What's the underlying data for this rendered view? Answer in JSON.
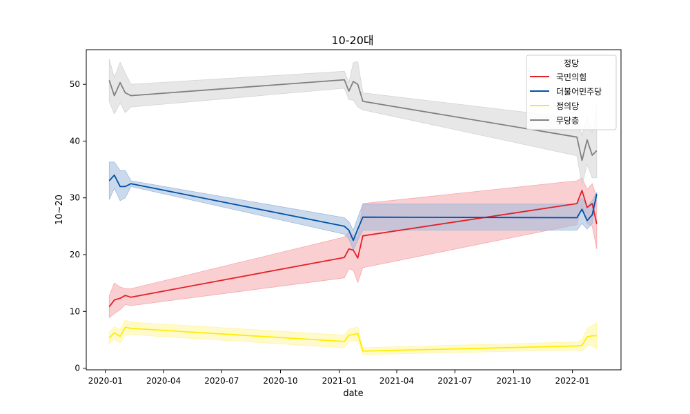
{
  "chart_data": {
    "type": "line",
    "title": "10-20대",
    "xlabel": "date",
    "ylabel": "10~20",
    "xlim": [
      "2019-12-02",
      "2022-03-18"
    ],
    "ylim": [
      -0.3,
      56.1
    ],
    "x_ticks": [
      "2020-01",
      "2020-04",
      "2020-07",
      "2020-10",
      "2021-01",
      "2021-04",
      "2021-07",
      "2021-10",
      "2022-01"
    ],
    "y_ticks": [
      0,
      10,
      20,
      30,
      40,
      50
    ],
    "grid": false,
    "legend": {
      "title": "정당",
      "placement": "top-right"
    },
    "series": [
      {
        "name": "국민의힘",
        "color": "#e32028",
        "band_color": "#f6a8ab",
        "points": [
          [
            "2020-01-07",
            10.8
          ],
          [
            "2020-01-15",
            12.0
          ],
          [
            "2020-01-24",
            12.3
          ],
          [
            "2020-02-01",
            12.8
          ],
          [
            "2020-02-10",
            12.5
          ],
          [
            "2021-01-09",
            19.5
          ],
          [
            "2021-01-16",
            21.0
          ],
          [
            "2021-01-23",
            20.8
          ],
          [
            "2021-01-30",
            19.4
          ],
          [
            "2021-02-07",
            23.3
          ],
          [
            "2022-01-08",
            29.0
          ],
          [
            "2022-01-16",
            31.3
          ],
          [
            "2022-01-24",
            28.3
          ],
          [
            "2022-02-01",
            29.0
          ],
          [
            "2022-02-08",
            25.4
          ]
        ],
        "band_upper": [
          [
            "2020-01-07",
            12.7
          ],
          [
            "2020-01-15",
            15.0
          ],
          [
            "2020-01-24",
            14.3
          ],
          [
            "2020-02-01",
            14.0
          ],
          [
            "2020-02-10",
            14.0
          ],
          [
            "2021-01-09",
            23.1
          ],
          [
            "2021-01-16",
            24.0
          ],
          [
            "2021-01-23",
            23.5
          ],
          [
            "2021-01-30",
            23.0
          ],
          [
            "2021-02-07",
            29.0
          ],
          [
            "2022-01-08",
            33.0
          ],
          [
            "2022-01-16",
            33.5
          ],
          [
            "2022-01-24",
            31.5
          ],
          [
            "2022-02-01",
            32.5
          ],
          [
            "2022-02-08",
            30.0
          ]
        ],
        "band_lower": [
          [
            "2020-01-07",
            8.9
          ],
          [
            "2020-01-15",
            9.6
          ],
          [
            "2020-01-24",
            10.3
          ],
          [
            "2020-02-01",
            11.2
          ],
          [
            "2020-02-10",
            11.0
          ],
          [
            "2021-01-09",
            15.9
          ],
          [
            "2021-01-16",
            17.5
          ],
          [
            "2021-01-23",
            17.2
          ],
          [
            "2021-01-30",
            15.1
          ],
          [
            "2021-02-07",
            17.7
          ],
          [
            "2022-01-08",
            25.3
          ],
          [
            "2022-01-16",
            28.8
          ],
          [
            "2022-01-24",
            25.5
          ],
          [
            "2022-02-01",
            25.0
          ],
          [
            "2022-02-08",
            21.0
          ]
        ]
      },
      {
        "name": "더불어민주당",
        "color": "#0050a6",
        "band_color": "#9ebadc",
        "points": [
          [
            "2020-01-07",
            33.0
          ],
          [
            "2020-01-15",
            34.0
          ],
          [
            "2020-01-24",
            32.0
          ],
          [
            "2020-02-01",
            32.0
          ],
          [
            "2020-02-10",
            32.5
          ],
          [
            "2021-01-09",
            25.0
          ],
          [
            "2021-01-16",
            24.3
          ],
          [
            "2021-01-23",
            22.5
          ],
          [
            "2021-01-30",
            24.5
          ],
          [
            "2021-02-07",
            26.6
          ],
          [
            "2022-01-08",
            26.5
          ],
          [
            "2022-01-16",
            28.0
          ],
          [
            "2022-01-24",
            26.0
          ],
          [
            "2022-02-01",
            27.0
          ],
          [
            "2022-02-08",
            30.7
          ]
        ],
        "band_upper": [
          [
            "2020-01-07",
            36.3
          ],
          [
            "2020-01-15",
            36.3
          ],
          [
            "2020-01-24",
            34.8
          ],
          [
            "2020-02-01",
            34.8
          ],
          [
            "2020-02-10",
            33.0
          ],
          [
            "2021-01-09",
            26.5
          ],
          [
            "2021-01-16",
            25.8
          ],
          [
            "2021-01-23",
            24.3
          ],
          [
            "2021-01-30",
            26.5
          ],
          [
            "2021-02-07",
            28.9
          ],
          [
            "2022-01-08",
            28.9
          ],
          [
            "2022-01-16",
            30.0
          ],
          [
            "2022-01-24",
            28.5
          ],
          [
            "2022-02-01",
            29.5
          ],
          [
            "2022-02-08",
            31.0
          ]
        ],
        "band_lower": [
          [
            "2020-01-07",
            29.7
          ],
          [
            "2020-01-15",
            31.7
          ],
          [
            "2020-01-24",
            29.5
          ],
          [
            "2020-02-01",
            30.0
          ],
          [
            "2020-02-10",
            32.0
          ],
          [
            "2021-01-09",
            23.6
          ],
          [
            "2021-01-16",
            22.8
          ],
          [
            "2021-01-23",
            20.8
          ],
          [
            "2021-01-30",
            22.5
          ],
          [
            "2021-02-07",
            24.3
          ],
          [
            "2022-01-08",
            24.3
          ],
          [
            "2022-01-16",
            25.5
          ],
          [
            "2022-01-24",
            24.5
          ],
          [
            "2022-02-01",
            25.5
          ],
          [
            "2022-02-08",
            30.0
          ]
        ]
      },
      {
        "name": "정의당",
        "color": "#ffed00",
        "band_color": "#fff6a0",
        "points": [
          [
            "2020-01-07",
            5.3
          ],
          [
            "2020-01-15",
            6.2
          ],
          [
            "2020-01-24",
            5.6
          ],
          [
            "2020-02-01",
            7.2
          ],
          [
            "2020-02-10",
            7.0
          ],
          [
            "2021-01-09",
            4.7
          ],
          [
            "2021-01-16",
            5.8
          ],
          [
            "2021-01-23",
            5.9
          ],
          [
            "2021-01-30",
            6.1
          ],
          [
            "2021-02-07",
            3.0
          ],
          [
            "2022-01-08",
            3.9
          ],
          [
            "2022-01-16",
            4.0
          ],
          [
            "2022-01-24",
            5.5
          ],
          [
            "2022-02-01",
            5.7
          ],
          [
            "2022-02-08",
            5.7
          ]
        ],
        "band_upper": [
          [
            "2020-01-07",
            6.3
          ],
          [
            "2020-01-15",
            7.3
          ],
          [
            "2020-01-24",
            6.8
          ],
          [
            "2020-02-01",
            8.5
          ],
          [
            "2020-02-10",
            8.1
          ],
          [
            "2021-01-09",
            5.8
          ],
          [
            "2021-01-16",
            6.9
          ],
          [
            "2021-01-23",
            7.0
          ],
          [
            "2021-01-30",
            7.3
          ],
          [
            "2021-02-07",
            3.6
          ],
          [
            "2022-01-08",
            4.6
          ],
          [
            "2022-01-16",
            5.0
          ],
          [
            "2022-01-24",
            7.0
          ],
          [
            "2022-02-01",
            7.5
          ],
          [
            "2022-02-08",
            8.0
          ]
        ],
        "band_lower": [
          [
            "2020-01-07",
            4.3
          ],
          [
            "2020-01-15",
            5.1
          ],
          [
            "2020-01-24",
            4.4
          ],
          [
            "2020-02-01",
            5.9
          ],
          [
            "2020-02-10",
            5.9
          ],
          [
            "2021-01-09",
            3.6
          ],
          [
            "2021-01-16",
            4.7
          ],
          [
            "2021-01-23",
            4.8
          ],
          [
            "2021-01-30",
            4.9
          ],
          [
            "2021-02-07",
            2.4
          ],
          [
            "2022-01-08",
            3.2
          ],
          [
            "2022-01-16",
            3.0
          ],
          [
            "2022-01-24",
            4.0
          ],
          [
            "2022-02-01",
            3.9
          ],
          [
            "2022-02-08",
            3.4
          ]
        ]
      },
      {
        "name": "무당층",
        "color": "#808080",
        "band_color": "#d4d4d4",
        "points": [
          [
            "2020-01-07",
            50.7
          ],
          [
            "2020-01-15",
            48.0
          ],
          [
            "2020-01-24",
            50.3
          ],
          [
            "2020-02-01",
            48.5
          ],
          [
            "2020-02-10",
            48.0
          ],
          [
            "2021-01-09",
            50.8
          ],
          [
            "2021-01-16",
            48.8
          ],
          [
            "2021-01-23",
            50.5
          ],
          [
            "2021-01-30",
            50.0
          ],
          [
            "2021-02-07",
            47.0
          ],
          [
            "2022-01-08",
            40.7
          ],
          [
            "2022-01-16",
            36.6
          ],
          [
            "2022-01-24",
            40.2
          ],
          [
            "2022-02-01",
            37.5
          ],
          [
            "2022-02-08",
            38.3
          ]
        ],
        "band_upper": [
          [
            "2020-01-07",
            54.4
          ],
          [
            "2020-01-15",
            51.2
          ],
          [
            "2020-01-24",
            53.9
          ],
          [
            "2020-02-01",
            52.0
          ],
          [
            "2020-02-10",
            50.0
          ],
          [
            "2021-01-09",
            52.3
          ],
          [
            "2021-01-16",
            50.3
          ],
          [
            "2021-01-23",
            53.8
          ],
          [
            "2021-01-30",
            54.0
          ],
          [
            "2021-02-07",
            48.5
          ],
          [
            "2022-01-08",
            44.0
          ],
          [
            "2022-01-16",
            41.0
          ],
          [
            "2022-01-24",
            44.5
          ],
          [
            "2022-02-01",
            41.5
          ],
          [
            "2022-02-08",
            46.5
          ]
        ],
        "band_lower": [
          [
            "2020-01-07",
            47.0
          ],
          [
            "2020-01-15",
            44.8
          ],
          [
            "2020-01-24",
            46.7
          ],
          [
            "2020-02-01",
            45.0
          ],
          [
            "2020-02-10",
            46.0
          ],
          [
            "2021-01-09",
            49.3
          ],
          [
            "2021-01-16",
            47.3
          ],
          [
            "2021-01-23",
            47.2
          ],
          [
            "2021-01-30",
            46.0
          ],
          [
            "2021-02-07",
            45.5
          ],
          [
            "2022-01-08",
            37.4
          ],
          [
            "2022-01-16",
            32.2
          ],
          [
            "2022-01-24",
            35.9
          ],
          [
            "2022-02-01",
            33.5
          ],
          [
            "2022-02-08",
            33.5
          ]
        ]
      }
    ]
  }
}
